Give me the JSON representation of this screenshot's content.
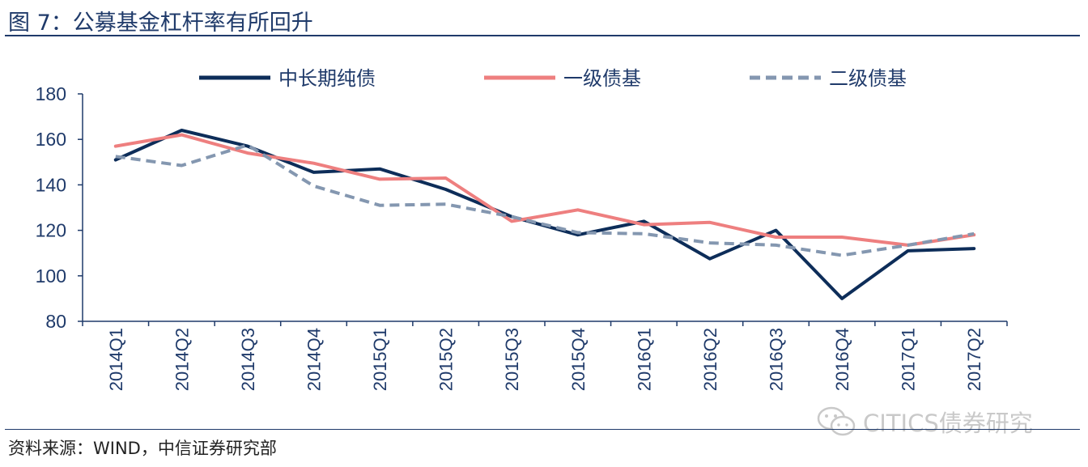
{
  "header": {
    "title": "图 7：公募基金杠杆率有所回升"
  },
  "footer": {
    "source": "资料来源：WIND，中信证券研究部"
  },
  "watermark": {
    "text": "CITICS债券研究",
    "icon": "wechat-logo-icon"
  },
  "colors": {
    "axis": "#1f3a6a",
    "series_long": "#0d2d59",
    "series_first": "#ee7f7f",
    "series_second": "#8497b0"
  },
  "chart_data": {
    "type": "line",
    "title": "",
    "xlabel": "",
    "ylabel": "",
    "ylim": [
      80,
      180
    ],
    "yticks": [
      80,
      100,
      120,
      140,
      160,
      180
    ],
    "grid": false,
    "legend_position": "top",
    "categories": [
      "2014Q1",
      "2014Q2",
      "2014Q3",
      "2014Q4",
      "2015Q1",
      "2015Q2",
      "2015Q3",
      "2015Q4",
      "2016Q1",
      "2016Q2",
      "2016Q3",
      "2016Q4",
      "2017Q1",
      "2017Q2"
    ],
    "series": [
      {
        "name": "中长期纯债",
        "style": "solid",
        "color": "#0d2d59",
        "values": [
          151,
          164,
          157,
          145.5,
          147,
          138,
          126,
          118,
          124,
          107.5,
          120,
          90,
          111,
          112
        ]
      },
      {
        "name": "一级债基",
        "style": "solid",
        "color": "#ee7f7f",
        "values": [
          157,
          162,
          154,
          149.5,
          142.5,
          143,
          124,
          129,
          122.5,
          123.5,
          117,
          117,
          113.5,
          118
        ]
      },
      {
        "name": "二级债基",
        "style": "dashed",
        "color": "#8497b0",
        "values": [
          152.5,
          148.5,
          157.5,
          139.5,
          131,
          131.5,
          126,
          119,
          118.5,
          114.5,
          113.5,
          109,
          113.5,
          118.5
        ]
      }
    ]
  }
}
